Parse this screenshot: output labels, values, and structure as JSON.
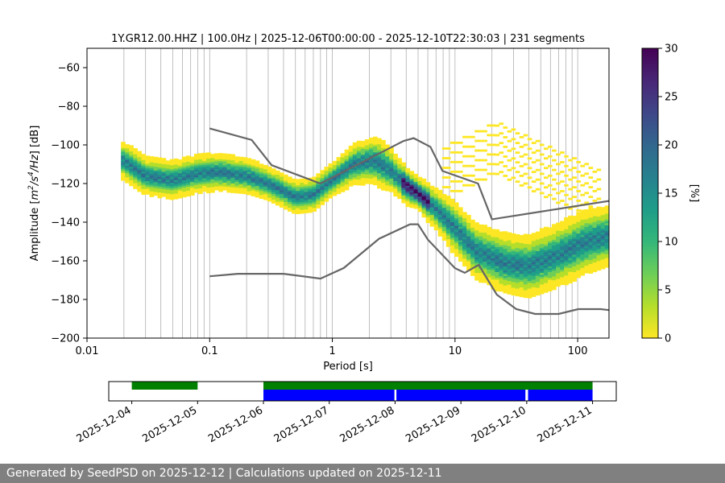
{
  "chart_data": [
    {
      "type": "heatmap",
      "title": "1Y.GR12.00.HHZ | 100.0Hz | 2025-12-06T00:00:00 - 2025-12-10T22:30:03 | 231 segments",
      "xlabel": "Period [s]",
      "ylabel_parts": [
        "Amplitude [",
        "m",
        "2",
        "/s",
        "4",
        "/Hz",
        "] [dB]"
      ],
      "xscale": "log",
      "xlim": [
        0.01,
        180
      ],
      "ylim": [
        -200,
        -50
      ],
      "x_ticks": [
        0.01,
        0.1,
        1,
        10,
        100
      ],
      "x_tick_labels": [
        "0.01",
        "0.1",
        "1",
        "10",
        "100"
      ],
      "y_ticks": [
        -200,
        -180,
        -160,
        -140,
        -120,
        -100,
        -80,
        -60
      ],
      "y_tick_labels": [
        "−200",
        "−180",
        "−160",
        "−140",
        "−120",
        "−100",
        "−80",
        "−60"
      ],
      "grid": "vertical-minor",
      "colorbar": {
        "label": "[%]",
        "min": 0,
        "max": 30,
        "ticks": [
          0,
          5,
          10,
          15,
          20,
          25,
          30
        ],
        "tick_labels": [
          "0",
          "5",
          "10",
          "15",
          "20",
          "25",
          "30"
        ],
        "cmap": [
          "#fde725",
          "#b5de2b",
          "#6ece58",
          "#35b779",
          "#1f9e89",
          "#26828e",
          "#31688e",
          "#3e4989",
          "#482878",
          "#440154"
        ]
      },
      "density": {
        "mode_curve": [
          [
            0.02,
            -108
          ],
          [
            0.03,
            -116
          ],
          [
            0.05,
            -118
          ],
          [
            0.08,
            -115
          ],
          [
            0.12,
            -114
          ],
          [
            0.2,
            -116
          ],
          [
            0.3,
            -120
          ],
          [
            0.5,
            -127
          ],
          [
            0.7,
            -126
          ],
          [
            1.0,
            -118
          ],
          [
            1.5,
            -110
          ],
          [
            2.2,
            -108
          ],
          [
            3.0,
            -113
          ],
          [
            4.0,
            -121
          ],
          [
            5.0,
            -125
          ],
          [
            7.0,
            -133
          ],
          [
            10.0,
            -143
          ],
          [
            15.0,
            -155
          ],
          [
            25.0,
            -161
          ],
          [
            40.0,
            -163
          ],
          [
            70.0,
            -157
          ],
          [
            120.0,
            -150
          ],
          [
            180.0,
            -147
          ]
        ],
        "spread_dB": [
          [
            0.02,
            10
          ],
          [
            0.1,
            10
          ],
          [
            0.3,
            9
          ],
          [
            1.0,
            9
          ],
          [
            2.5,
            13
          ],
          [
            5.0,
            8
          ],
          [
            10.0,
            14
          ],
          [
            30.0,
            16
          ],
          [
            100.0,
            17
          ],
          [
            180.0,
            16
          ]
        ],
        "peak_percent": 30
      },
      "noise_models": [
        {
          "name": "NHNM",
          "color": "#666666",
          "points": [
            [
              0.1,
              -91.5
            ],
            [
              0.22,
              -97.4
            ],
            [
              0.32,
              -110.5
            ],
            [
              0.8,
              -120
            ],
            [
              3.8,
              -98
            ],
            [
              4.6,
              -96.5
            ],
            [
              6.3,
              -101
            ],
            [
              7.9,
              -113.5
            ],
            [
              15.4,
              -120
            ],
            [
              20,
              -138.5
            ],
            [
              180,
              -129
            ]
          ]
        },
        {
          "name": "NLNM",
          "color": "#666666",
          "points": [
            [
              0.1,
              -168
            ],
            [
              0.17,
              -166.7
            ],
            [
              0.4,
              -166.7
            ],
            [
              0.8,
              -169.2
            ],
            [
              1.24,
              -163.7
            ],
            [
              2.4,
              -148.6
            ],
            [
              4.3,
              -141.1
            ],
            [
              5.0,
              -141.1
            ],
            [
              6.0,
              -149
            ],
            [
              10.0,
              -163.8
            ],
            [
              12.0,
              -166.2
            ],
            [
              15.6,
              -162.1
            ],
            [
              21.9,
              -177.5
            ],
            [
              31.6,
              -185
            ],
            [
              45,
              -187.5
            ],
            [
              70,
              -187.5
            ],
            [
              101,
              -185
            ],
            [
              154,
              -185
            ],
            [
              180,
              -185.5
            ]
          ]
        }
      ]
    },
    {
      "type": "timeline",
      "x_tick_labels": [
        "2025-12-04",
        "2025-12-05",
        "2025-12-06",
        "2025-12-07",
        "2025-12-08",
        "2025-12-09",
        "2025-12-10",
        "2025-12-11"
      ],
      "x_start_day": 3.65,
      "x_end_day": 11.36,
      "available_data": [
        [
          4.0,
          5.0
        ],
        [
          6.0,
          11.0
        ]
      ],
      "processed_segments": [
        [
          6.0,
          7.99
        ],
        [
          8.02,
          9.98
        ],
        [
          10.02,
          11.0
        ]
      ],
      "available_color": "#008000",
      "processed_color": "#0000ff"
    }
  ],
  "footer": {
    "text": "Generated by SeedPSD on 2025-12-12 | Calculations updated on 2025-12-11"
  }
}
